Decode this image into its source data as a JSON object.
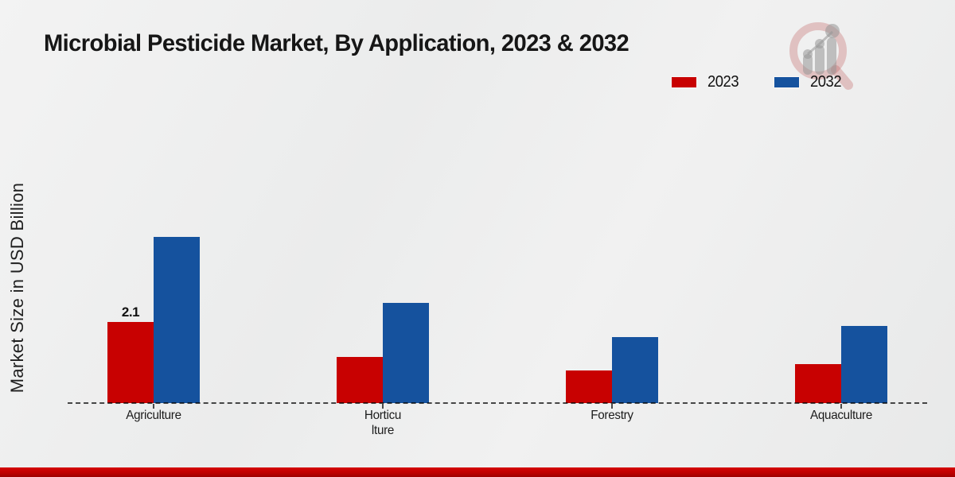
{
  "title": "Microbial Pesticide Market, By Application, 2023 & 2032",
  "legend": {
    "items": [
      {
        "label": "2023",
        "color": "#c80101"
      },
      {
        "label": "2032",
        "color": "#15529e"
      }
    ]
  },
  "chart_data": {
    "type": "bar",
    "title": "Microbial Pesticide Market, By Application, 2023 & 2032",
    "xlabel": "",
    "ylabel": "Market Size in USD Billion",
    "categories": [
      "Agriculture",
      "Horticulture",
      "Forestry",
      "Aquaculture"
    ],
    "category_display": [
      "Agriculture",
      "Horticu\nlture",
      "Forestry",
      "Aquaculture"
    ],
    "series": [
      {
        "name": "2023",
        "color": "#c80101",
        "values": [
          2.1,
          1.2,
          0.85,
          1.0
        ]
      },
      {
        "name": "2032",
        "color": "#15529e",
        "values": [
          4.3,
          2.6,
          1.7,
          2.0
        ]
      }
    ],
    "data_labels": [
      {
        "series": "2023",
        "category": "Agriculture",
        "text": "2.1"
      }
    ],
    "ylim": [
      0,
      4.5
    ],
    "grid": false,
    "axis_ticks_visible": false,
    "baseline_style": "dashed",
    "legend_position": "top-right"
  },
  "branding": {
    "logo_icon": "magnifier-bar-chart-watermark",
    "accent_color": "#c00000"
  }
}
